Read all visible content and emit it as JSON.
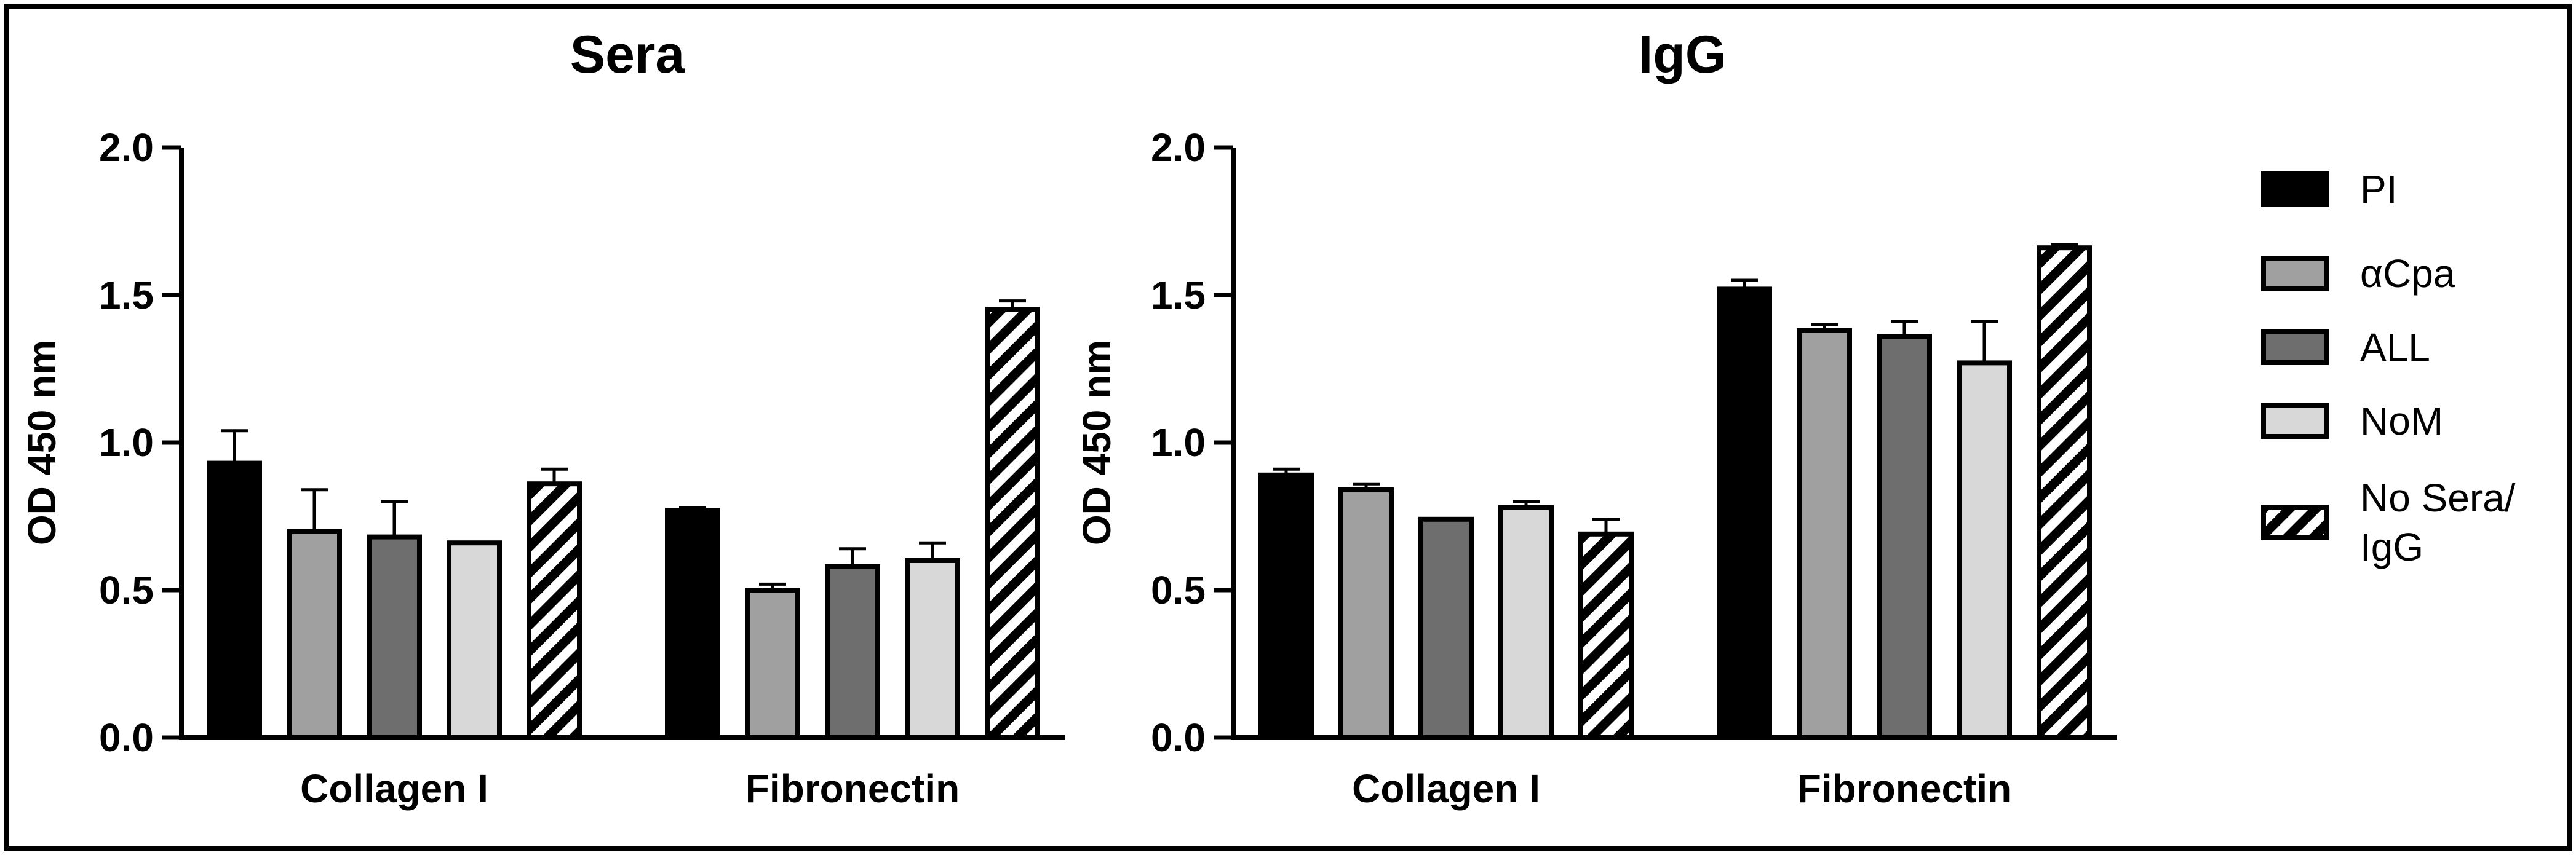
{
  "chart_data": [
    {
      "type": "bar",
      "title": "Sera",
      "xlabel": "",
      "ylabel": "OD 450 nm",
      "ylim": [
        0,
        2.0
      ],
      "yticks": [
        "0.0",
        "0.5",
        "1.0",
        "1.5",
        "2.0"
      ],
      "categories": [
        "Collagen I",
        "Fibronectin"
      ],
      "series": [
        {
          "name": "PI",
          "values": [
            0.93,
            0.77
          ],
          "errors": [
            0.11,
            0.01
          ]
        },
        {
          "name": "αCpa",
          "values": [
            0.7,
            0.5
          ],
          "errors": [
            0.14,
            0.02
          ]
        },
        {
          "name": "ALL",
          "values": [
            0.68,
            0.58
          ],
          "errors": [
            0.12,
            0.06
          ]
        },
        {
          "name": "NoM",
          "values": [
            0.66,
            0.6
          ],
          "errors": [
            0.0,
            0.06
          ]
        },
        {
          "name": "No Sera/ IgG",
          "values": [
            0.86,
            1.45
          ],
          "errors": [
            0.05,
            0.03
          ]
        }
      ]
    },
    {
      "type": "bar",
      "title": "IgG",
      "xlabel": "",
      "ylabel": "OD 450 nm",
      "ylim": [
        0,
        2.0
      ],
      "yticks": [
        "0.0",
        "0.5",
        "1.0",
        "1.5",
        "2.0"
      ],
      "categories": [
        "Collagen I",
        "Fibronectin"
      ],
      "series": [
        {
          "name": "PI",
          "values": [
            0.89,
            1.52
          ],
          "errors": [
            0.02,
            0.03
          ]
        },
        {
          "name": "αCpa",
          "values": [
            0.84,
            1.38
          ],
          "errors": [
            0.02,
            0.02
          ]
        },
        {
          "name": "ALL",
          "values": [
            0.74,
            1.36
          ],
          "errors": [
            0.0,
            0.05
          ]
        },
        {
          "name": "NoM",
          "values": [
            0.78,
            1.27
          ],
          "errors": [
            0.02,
            0.14
          ]
        },
        {
          "name": "No Sera/ IgG",
          "values": [
            0.69,
            1.66
          ],
          "errors": [
            0.05,
            0.01
          ]
        }
      ]
    }
  ],
  "legend": [
    {
      "label_lines": [
        "PI"
      ],
      "fill": "#000000",
      "pattern": "none"
    },
    {
      "label_lines": [
        "αCpa"
      ],
      "fill": "#a0a0a0",
      "pattern": "none"
    },
    {
      "label_lines": [
        "ALL"
      ],
      "fill": "#6e6e6e",
      "pattern": "none"
    },
    {
      "label_lines": [
        "NoM"
      ],
      "fill": "#d8d8d8",
      "pattern": "none"
    },
    {
      "label_lines": [
        "No Sera/",
        "IgG"
      ],
      "fill": "#ffffff",
      "pattern": "hatch"
    }
  ]
}
